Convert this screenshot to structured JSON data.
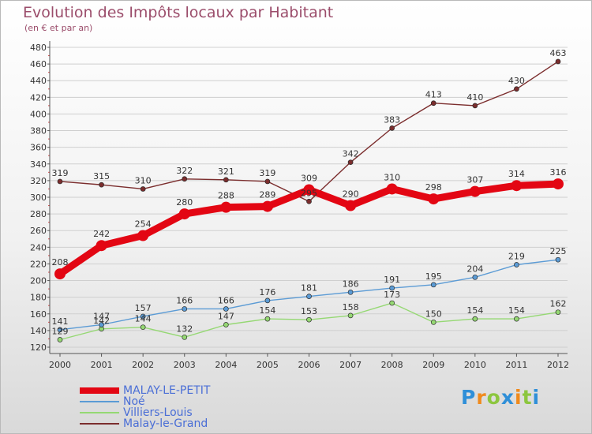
{
  "title": "Evolution des Impôts locaux par Habitant",
  "subtitle": "(en € et par an)",
  "logo": {
    "letters": [
      {
        "ch": "P",
        "color": "#2f8fd8"
      },
      {
        "ch": "r",
        "color": "#f08a1c"
      },
      {
        "ch": "o",
        "color": "#8cc63f"
      },
      {
        "ch": "x",
        "color": "#2f8fd8"
      },
      {
        "ch": "i",
        "color": "#f08a1c"
      },
      {
        "ch": "t",
        "color": "#8cc63f"
      },
      {
        "ch": "i",
        "color": "#2f8fd8"
      }
    ]
  },
  "chart_data": {
    "type": "line",
    "title": "Evolution des Impôts locaux par Habitant",
    "subtitle": "(en € et par an)",
    "xlabel": "",
    "ylabel": "",
    "categories": [
      "2000",
      "2001",
      "2002",
      "2003",
      "2004",
      "2005",
      "2006",
      "2007",
      "2008",
      "2009",
      "2010",
      "2011",
      "2012"
    ],
    "ylim": [
      120,
      480
    ],
    "ytick_step": 20,
    "grid": "horizontal",
    "legend_position": "bottom-left",
    "series": [
      {
        "name": "MALAY-LE-PETIT",
        "color": "#e30613",
        "emphasis": "thick",
        "values": [
          208,
          242,
          254,
          280,
          288,
          289,
          309,
          290,
          310,
          298,
          307,
          314,
          316
        ],
        "labels": [
          "208",
          "242",
          "254",
          "280",
          "288",
          "289",
          "309",
          "290",
          "310",
          "298",
          "307",
          "314",
          "316"
        ]
      },
      {
        "name": "Noé",
        "color": "#5b9bd5",
        "emphasis": "thin",
        "values": [
          141,
          147,
          157,
          166,
          166,
          176,
          181,
          186,
          191,
          195,
          204,
          219,
          225
        ],
        "labels": [
          "141",
          "147",
          "157",
          "166",
          "166",
          "176",
          "181",
          "186",
          "191",
          "195",
          "204",
          "219",
          "225"
        ]
      },
      {
        "name": "Villiers-Louis",
        "color": "#95d873",
        "emphasis": "thin",
        "values": [
          129,
          142,
          144,
          132,
          147,
          154,
          153,
          158,
          173,
          150,
          154,
          154,
          162
        ],
        "labels": [
          "129",
          "142",
          "144",
          "132",
          "147",
          "154",
          "153",
          "158",
          "173",
          "150",
          "154",
          "154",
          "162"
        ]
      },
      {
        "name": "Malay-le-Grand",
        "color": "#7b2d2d",
        "emphasis": "thin",
        "values": [
          319,
          315,
          310,
          322,
          321,
          319,
          295,
          342,
          383,
          413,
          410,
          430,
          463
        ],
        "labels": [
          "319",
          "315",
          "310",
          "322",
          "321",
          "319",
          "295",
          "342",
          "383",
          "413",
          "410",
          "430",
          "463"
        ]
      }
    ]
  }
}
